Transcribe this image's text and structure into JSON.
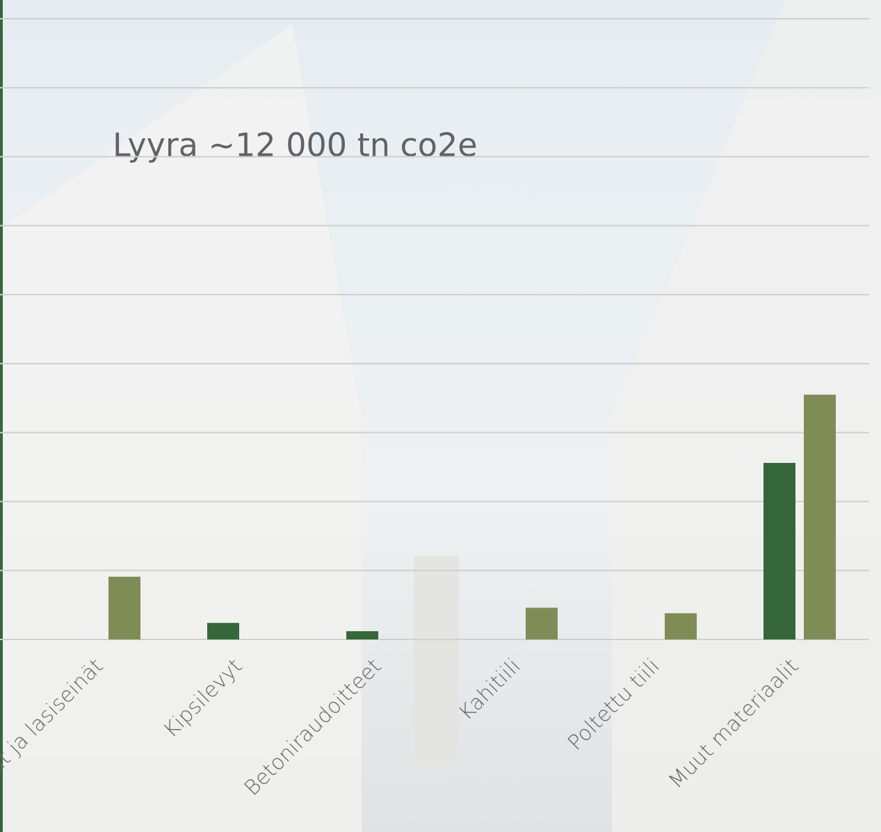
{
  "chart_data": {
    "type": "bar",
    "title": "Lyyra ~12 000 tn co2e",
    "categories": [
      "at ja lasiseinät",
      "Kipsilevyt",
      "Betoniraudoitteet",
      "Kahitiili",
      "Poltettu tiili",
      "Muut materiaalit"
    ],
    "series": [
      {
        "color": "#35673a",
        "values": [
          null,
          0.24,
          0.12,
          null,
          null,
          2.56
        ]
      },
      {
        "color": "#7f8c55",
        "values": [
          0.91,
          null,
          null,
          0.46,
          0.38,
          3.55
        ]
      }
    ],
    "ylim": [
      0,
      9
    ],
    "yticks": [
      0,
      1,
      2,
      3,
      4,
      5,
      6,
      7,
      8,
      9
    ],
    "grid": true
  }
}
